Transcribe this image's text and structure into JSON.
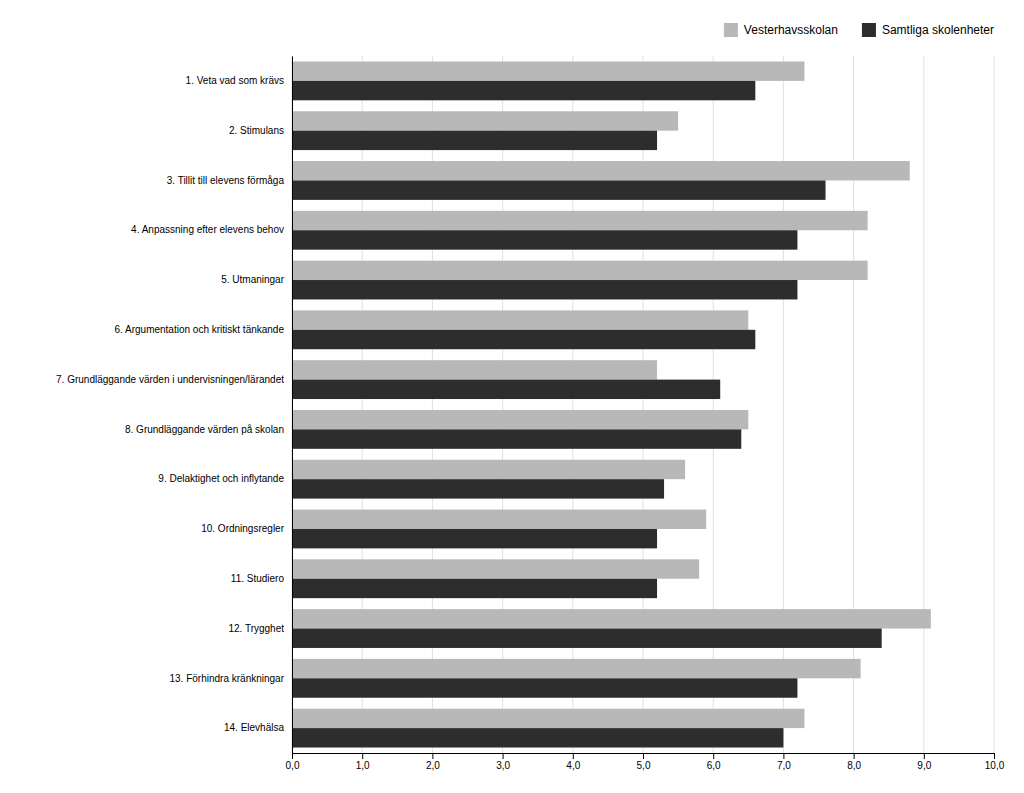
{
  "chart_data": {
    "type": "bar",
    "orientation": "horizontal",
    "categories": [
      "1. Veta vad som krävs",
      "2. Stimulans",
      "3. Tillit till elevens förmåga",
      "4. Anpassning efter elevens behov",
      "5. Utmaningar",
      "6. Argumentation och kritiskt tänkande",
      "7. Grundläggande värden i undervisningen/lärandet",
      "8. Grundläggande värden på skolan",
      "9. Delaktighet och inflytande",
      "10. Ordningsregler",
      "11. Studiero",
      "12. Trygghet",
      "13. Förhindra kränkningar",
      "14. Elevhälsa"
    ],
    "series": [
      {
        "name": "Vesterhavsskolan",
        "color": "#b8b8b8",
        "values": [
          7.3,
          5.5,
          8.8,
          8.2,
          8.2,
          6.5,
          5.2,
          6.5,
          5.6,
          5.9,
          5.8,
          9.1,
          8.1,
          7.3
        ]
      },
      {
        "name": "Samtliga skolenheter",
        "color": "#2d2d2d",
        "values": [
          6.6,
          5.2,
          7.6,
          7.2,
          7.2,
          6.6,
          6.1,
          6.4,
          5.3,
          5.2,
          5.2,
          8.4,
          7.2,
          7.0
        ]
      }
    ],
    "xlim": [
      0,
      10
    ],
    "xticks": [
      {
        "value": 0,
        "label": "0,0"
      },
      {
        "value": 1,
        "label": "1,0"
      },
      {
        "value": 2,
        "label": "2,0"
      },
      {
        "value": 3,
        "label": "3,0"
      },
      {
        "value": 4,
        "label": "4,0"
      },
      {
        "value": 5,
        "label": "5,0"
      },
      {
        "value": 6,
        "label": "6,0"
      },
      {
        "value": 7,
        "label": "7,0"
      },
      {
        "value": 8,
        "label": "8,0"
      },
      {
        "value": 9,
        "label": "9,0"
      },
      {
        "value": 10,
        "label": "10,0"
      }
    ],
    "grid": true,
    "legend": "upper right"
  }
}
